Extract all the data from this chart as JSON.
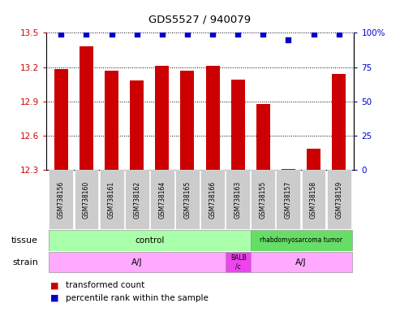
{
  "title": "GDS5527 / 940079",
  "samples": [
    "GSM738156",
    "GSM738160",
    "GSM738161",
    "GSM738162",
    "GSM738164",
    "GSM738165",
    "GSM738166",
    "GSM738163",
    "GSM738155",
    "GSM738157",
    "GSM738158",
    "GSM738159"
  ],
  "bar_values": [
    13.18,
    13.38,
    13.17,
    13.08,
    13.21,
    13.17,
    13.21,
    13.09,
    12.88,
    12.31,
    12.49,
    13.14
  ],
  "percentile_values": [
    99,
    99,
    99,
    99,
    99,
    99,
    99,
    99,
    99,
    95,
    99,
    99
  ],
  "bar_bottom": 12.3,
  "ylim_left": [
    12.3,
    13.5
  ],
  "ylim_right": [
    0,
    100
  ],
  "yticks_left": [
    12.3,
    12.6,
    12.9,
    13.2,
    13.5
  ],
  "yticks_right": [
    0,
    25,
    50,
    75,
    100
  ],
  "bar_color": "#cc0000",
  "dot_color": "#0000cc",
  "grid_color": "#000000",
  "legend_red": "transformed count",
  "legend_blue": "percentile rank within the sample",
  "left_axis_color": "#cc0000",
  "right_axis_color": "#0000cc",
  "control_color": "#aaffaa",
  "rhabdo_color": "#66dd66",
  "aj_color": "#ffaaff",
  "balb_color": "#ee44ee",
  "label_bg_color": "#cccccc",
  "label_border_color": "#aaaaaa"
}
